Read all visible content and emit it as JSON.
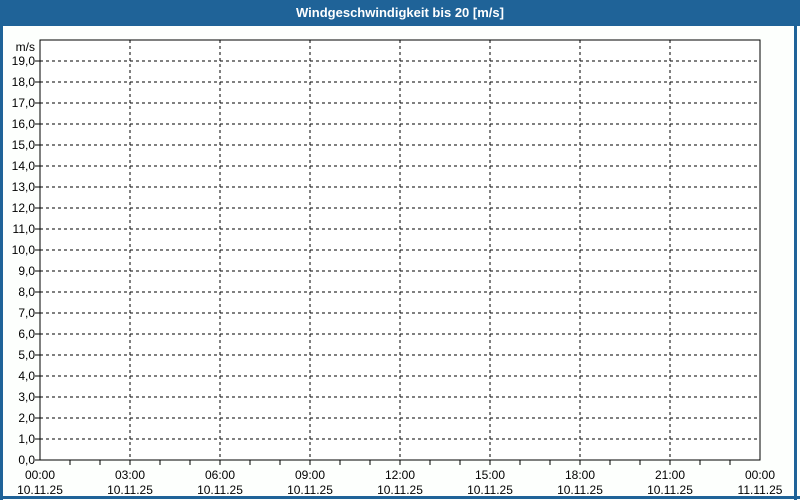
{
  "window": {
    "title": "Windgeschwindigkeit bis 20 [m/s]"
  },
  "colors": {
    "titlebar_bg": "#1f6398",
    "titlebar_text": "#ffffff",
    "border": "#1f6398",
    "page_bg": "#fdfffd",
    "plot_bg": "#ffffff",
    "grid": "#000000",
    "axis": "#000000",
    "text": "#000000"
  },
  "chart_data": {
    "type": "line",
    "title": "Windgeschwindigkeit bis 20 [m/s]",
    "series": [],
    "ylabel": "m/s",
    "ylim": [
      0,
      20
    ],
    "y_grid_step": 1,
    "y_tick_labels": [
      "0,0",
      "1,0",
      "2,0",
      "3,0",
      "4,0",
      "5,0",
      "6,0",
      "7,0",
      "8,0",
      "9,0",
      "10,0",
      "11,0",
      "12,0",
      "13,0",
      "14,0",
      "15,0",
      "16,0",
      "17,0",
      "18,0",
      "19,0"
    ],
    "x_hours_total": 24,
    "x_major_step_hours": 3,
    "x_minor_step_hours": 1,
    "x_ticks": [
      {
        "time": "00:00",
        "date": "10.11.25"
      },
      {
        "time": "03:00",
        "date": "10.11.25"
      },
      {
        "time": "06:00",
        "date": "10.11.25"
      },
      {
        "time": "09:00",
        "date": "10.11.25"
      },
      {
        "time": "12:00",
        "date": "10.11.25"
      },
      {
        "time": "15:00",
        "date": "10.11.25"
      },
      {
        "time": "18:00",
        "date": "10.11.25"
      },
      {
        "time": "21:00",
        "date": "10.11.25"
      },
      {
        "time": "00:00",
        "date": "11.11.25"
      }
    ],
    "grid_style": "dashed",
    "legend": "none"
  }
}
